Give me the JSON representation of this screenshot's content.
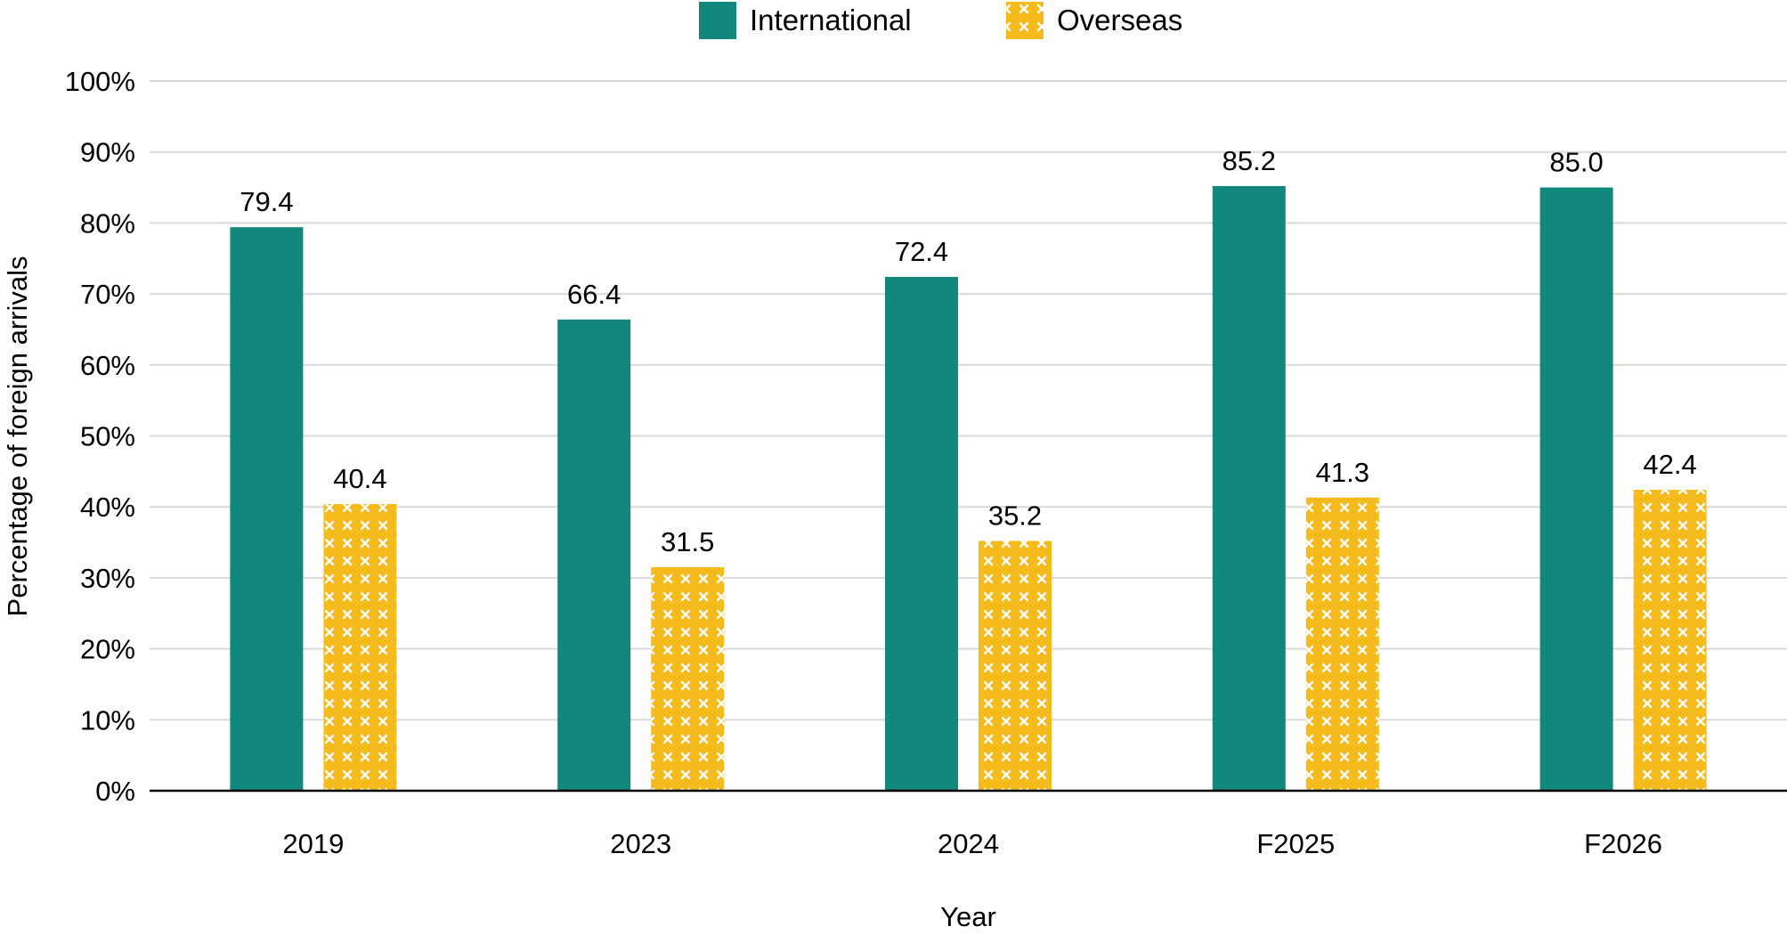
{
  "chart_data": {
    "type": "bar",
    "title": "",
    "xlabel": "Year",
    "ylabel": "Percentage of foreign arrivals",
    "categories": [
      "2019",
      "2023",
      "2024",
      "F2025",
      "F2026"
    ],
    "series": [
      {
        "name": "International",
        "values": [
          79.4,
          66.4,
          72.4,
          85.2,
          85.0
        ],
        "labels": [
          "79.4",
          "66.4",
          "72.4",
          "85.2",
          "85.0"
        ],
        "color": "#12877c",
        "pattern": "solid"
      },
      {
        "name": "Overseas",
        "values": [
          40.4,
          31.5,
          35.2,
          41.3,
          42.4
        ],
        "labels": [
          "40.4",
          "31.5",
          "35.2",
          "41.3",
          "42.4"
        ],
        "color": "#f5bb1d",
        "pattern": "white-crosses"
      }
    ],
    "ylim": [
      0,
      100
    ],
    "yticks": [
      0,
      10,
      20,
      30,
      40,
      50,
      60,
      70,
      80,
      90,
      100
    ],
    "ytick_labels": [
      "0%",
      "10%",
      "20%",
      "30%",
      "40%",
      "50%",
      "60%",
      "70%",
      "80%",
      "90%",
      "100%"
    ],
    "grid": true,
    "legend": "top-center"
  }
}
